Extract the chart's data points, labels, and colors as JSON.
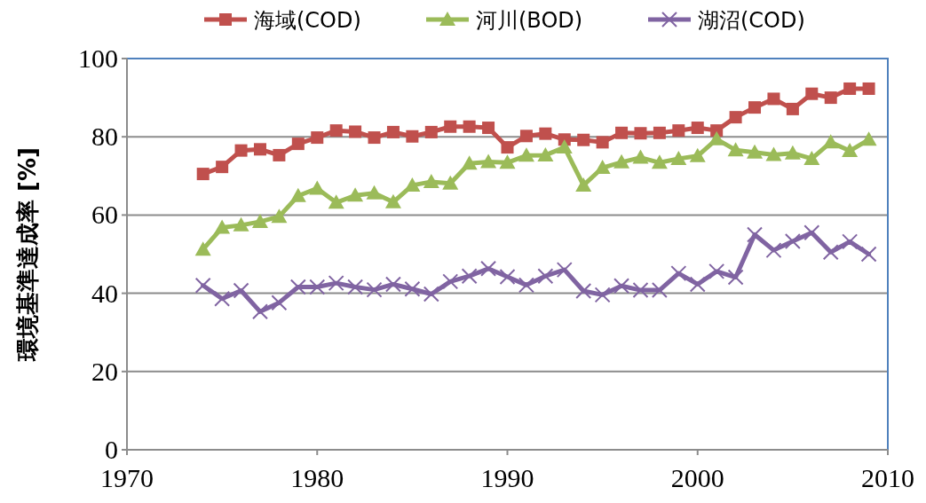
{
  "chart_data": {
    "type": "line",
    "ylabel": "環境基準達成率 [%]",
    "x": [
      1974,
      1975,
      1976,
      1977,
      1978,
      1979,
      1980,
      1981,
      1982,
      1983,
      1984,
      1985,
      1986,
      1987,
      1988,
      1989,
      1990,
      1991,
      1992,
      1993,
      1994,
      1995,
      1996,
      1997,
      1998,
      1999,
      2000,
      2001,
      2002,
      2003,
      2004,
      2005,
      2006,
      2007,
      2008,
      2009
    ],
    "series": [
      {
        "name": "海域(COD)",
        "color": "#c0504d",
        "marker": "square",
        "values": [
          70.5,
          72.3,
          76.5,
          76.8,
          75.3,
          78.2,
          79.8,
          81.6,
          81.3,
          79.8,
          81.2,
          80.1,
          81.2,
          82.6,
          82.6,
          82.3,
          77.3,
          80.2,
          80.8,
          79.3,
          79.2,
          78.6,
          81.0,
          80.9,
          81.0,
          81.6,
          82.3,
          81.6,
          85.0,
          87.5,
          89.7,
          87.1,
          91.0,
          90.0,
          92.3,
          92.3
        ]
      },
      {
        "name": "河川(BOD)",
        "color": "#9bbb59",
        "marker": "triangle",
        "values": [
          51.2,
          56.8,
          57.4,
          58.3,
          59.6,
          64.9,
          66.8,
          63.2,
          65.0,
          65.6,
          63.3,
          67.6,
          68.5,
          68.1,
          73.2,
          73.6,
          73.4,
          75.2,
          75.3,
          77.3,
          67.6,
          72.1,
          73.5,
          74.7,
          73.4,
          74.4,
          75.1,
          79.4,
          76.6,
          76.0,
          75.4,
          75.8,
          74.4,
          78.6,
          76.4,
          79.3
        ]
      },
      {
        "name": "湖沼(COD)",
        "color": "#8064a2",
        "marker": "cross",
        "values": [
          42.0,
          38.6,
          40.7,
          35.3,
          37.6,
          41.6,
          41.6,
          42.6,
          41.6,
          40.9,
          42.3,
          41.1,
          39.8,
          43.0,
          44.4,
          46.3,
          44.2,
          42.1,
          44.4,
          46.0,
          40.6,
          39.6,
          41.9,
          40.8,
          40.8,
          45.1,
          42.3,
          45.6,
          44.1,
          55.0,
          51.0,
          53.3,
          55.5,
          50.5,
          53.2,
          50.0
        ]
      }
    ],
    "xlim": [
      1970,
      2010
    ],
    "xticks": [
      1970,
      1980,
      1990,
      2000,
      2010
    ],
    "ylim": [
      0,
      100
    ],
    "yticks": [
      0,
      20,
      40,
      60,
      80,
      100
    ],
    "grid": "y",
    "legend": "top"
  }
}
